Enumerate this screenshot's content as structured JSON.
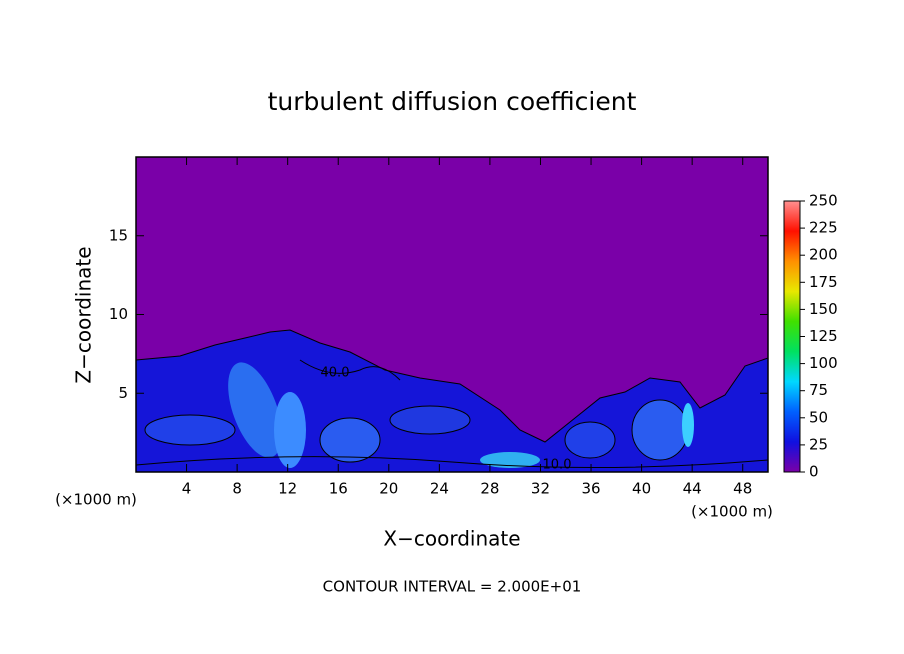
{
  "chart_data": {
    "type": "heatmap",
    "title": "turbulent diffusion coefficient",
    "x_label": "X−coordinate",
    "y_label": "Z−coordinate",
    "x_unit_label": "(×1000 m)",
    "xlim": [
      0,
      50
    ],
    "xticks": [
      4,
      8,
      12,
      16,
      20,
      24,
      28,
      32,
      36,
      40,
      44,
      48
    ],
    "ylim": [
      0,
      20
    ],
    "yticks": [
      5,
      10,
      15
    ],
    "colorbar": {
      "lim": [
        0,
        250
      ],
      "ticks": [
        0,
        25,
        50,
        75,
        100,
        125,
        150,
        175,
        200,
        225,
        250
      ],
      "colormap": [
        "#7a00a8",
        "#1010e0",
        "#0060ff",
        "#00d8ff",
        "#00e060",
        "#40e000",
        "#e8e800",
        "#ff9000",
        "#ff1000",
        "#ff9090"
      ]
    },
    "contour_labels": [
      "40.0",
      "10.0"
    ],
    "note": "CONTOUR INTERVAL = 2.000E+01"
  }
}
